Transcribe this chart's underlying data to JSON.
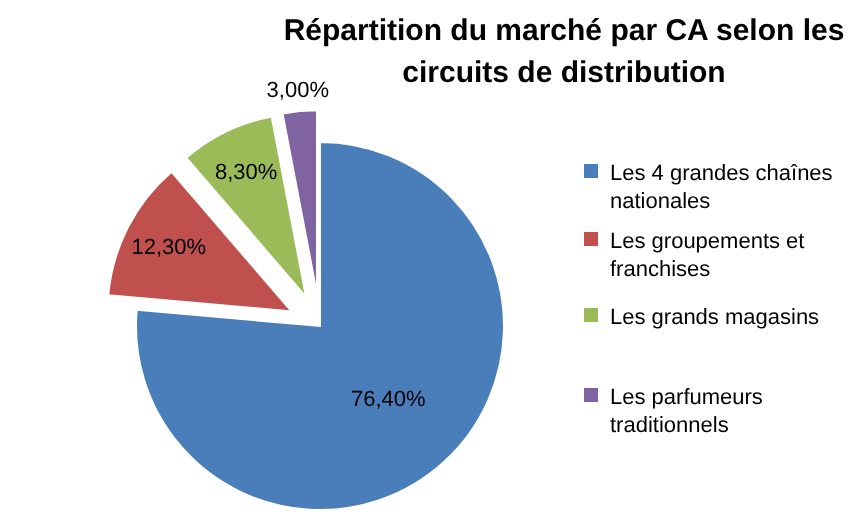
{
  "chart_data": {
    "type": "pie",
    "title": "Répartition du marché par CA selon les circuits de distribution",
    "categories": [
      "Les 4 grandes chaînes nationales",
      "Les groupements et franchises",
      "Les grands magasins",
      "Les parfumeurs traditionnels"
    ],
    "values": [
      76.4,
      12.3,
      8.3,
      3.0
    ],
    "value_labels": [
      "76,40%",
      "12,30%",
      "8,30%",
      "3,00%"
    ],
    "colors": [
      "#4a7ebb",
      "#c0504d",
      "#9bbb59",
      "#8064a2"
    ],
    "legend": "right"
  }
}
